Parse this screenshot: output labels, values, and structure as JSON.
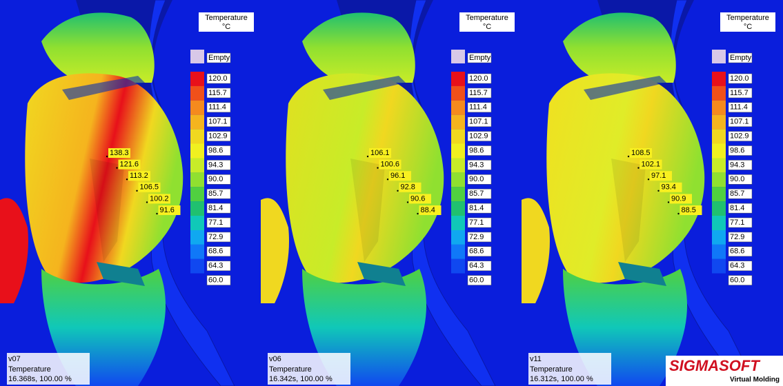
{
  "legend": {
    "title": "Temperature",
    "unit": "°C",
    "labels": [
      "Empty",
      "120.0",
      "115.7",
      "111.4",
      "107.1",
      "102.9",
      "98.6",
      "94.3",
      "90.0",
      "85.7",
      "81.4",
      "77.1",
      "72.9",
      "68.6",
      "64.3",
      "60.0"
    ],
    "colors": [
      "#d8c8e8",
      "#e8101a",
      "#f0501a",
      "#f58a1e",
      "#f5b41e",
      "#f0d820",
      "#f0f020",
      "#c8ec28",
      "#90e030",
      "#50d040",
      "#20c070",
      "#10c8b8",
      "#10a8f0",
      "#1078f8",
      "#1048f0",
      "#0a1edc"
    ]
  },
  "panels": [
    {
      "version": "v07",
      "quantity": "Temperature",
      "time": "16.368s, 100.00 %",
      "probes": [
        "138.3",
        "121.6",
        "113.2",
        "106.5",
        "100.2",
        "91.6"
      ]
    },
    {
      "version": "v06",
      "quantity": "Temperature",
      "time": "16.342s, 100.00 %",
      "probes": [
        "106.1",
        "100.6",
        "96.1",
        "92.8",
        "90.6",
        "88.4"
      ]
    },
    {
      "version": "v11",
      "quantity": "Temperature",
      "time": "16.312s, 100.00 %",
      "probes": [
        "108.5",
        "102.1",
        "97.1",
        "93.4",
        "90.9",
        "88.5"
      ]
    }
  ],
  "logo": {
    "brand": "SIGMASOFT",
    "tagline": "Virtual Molding"
  }
}
